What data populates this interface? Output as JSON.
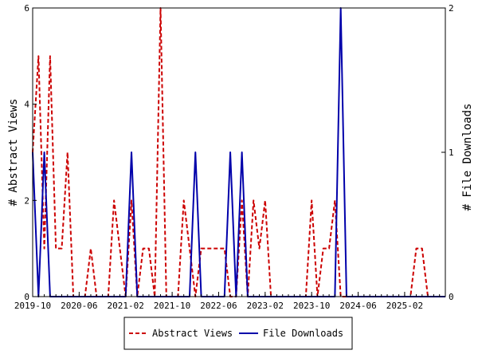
{
  "chart_data": {
    "type": "line",
    "title": "",
    "xlabel": "",
    "ylabel_left": "# Abstract Views",
    "ylabel_right": "# File Downloads",
    "ylim_left": [
      0,
      6
    ],
    "ylim_right": [
      0,
      2
    ],
    "yticks_left": [
      "0",
      "2",
      "4",
      "6"
    ],
    "yticks_right": [
      "0",
      "1",
      "2"
    ],
    "xlim": [
      "2019-10",
      "2025-09"
    ],
    "xticks": [
      "2019-10",
      "2020-06",
      "2021-02",
      "2021-10",
      "2022-06",
      "2023-02",
      "2023-10",
      "2024-06",
      "2025-02"
    ],
    "grid": false,
    "legend_position": "bottom",
    "x": [
      "2019-10",
      "2019-11",
      "2019-12",
      "2020-01",
      "2020-02",
      "2020-03",
      "2020-04",
      "2020-05",
      "2020-06",
      "2020-07",
      "2020-08",
      "2020-09",
      "2020-10",
      "2020-11",
      "2020-12",
      "2021-01",
      "2021-02",
      "2021-03",
      "2021-04",
      "2021-05",
      "2021-06",
      "2021-07",
      "2021-08",
      "2021-09",
      "2021-10",
      "2021-11",
      "2021-12",
      "2022-01",
      "2022-02",
      "2022-03",
      "2022-04",
      "2022-05",
      "2022-06",
      "2022-07",
      "2022-08",
      "2022-09",
      "2022-10",
      "2022-11",
      "2022-12",
      "2023-01",
      "2023-02",
      "2023-03",
      "2023-04",
      "2023-05",
      "2023-06",
      "2023-07",
      "2023-08",
      "2023-09",
      "2023-10",
      "2023-11",
      "2023-12",
      "2024-01",
      "2024-02",
      "2024-03",
      "2024-04",
      "2024-05",
      "2024-06",
      "2024-07",
      "2024-08",
      "2024-09",
      "2024-10",
      "2024-11",
      "2024-12",
      "2025-01",
      "2025-02",
      "2025-03",
      "2025-04",
      "2025-05",
      "2025-06",
      "2025-07",
      "2025-08",
      "2025-09"
    ],
    "series": [
      {
        "name": "Abstract Views",
        "axis": "left",
        "color": "#cc0000",
        "style": "dashed",
        "values": [
          3,
          5,
          1,
          5,
          1,
          1,
          3,
          0,
          0,
          0,
          1,
          0,
          0,
          0,
          2,
          1,
          0,
          2,
          0,
          1,
          1,
          0,
          6,
          0,
          0,
          0,
          2,
          1,
          0,
          1,
          1,
          1,
          1,
          1,
          0,
          0,
          2,
          0,
          2,
          1,
          2,
          0,
          0,
          0,
          0,
          0,
          0,
          0,
          2,
          0,
          1,
          1,
          2,
          0,
          0,
          0,
          0,
          0,
          0,
          0,
          0,
          0,
          0,
          0,
          0,
          0,
          1,
          1,
          0,
          0,
          0,
          0
        ]
      },
      {
        "name": "File Downloads",
        "axis": "right",
        "color": "#0000aa",
        "style": "solid",
        "values": [
          1,
          0,
          1,
          0,
          0,
          0,
          0,
          0,
          0,
          0,
          0,
          0,
          0,
          0,
          0,
          0,
          0,
          1,
          0,
          0,
          0,
          0,
          0,
          0,
          0,
          0,
          0,
          0,
          1,
          0,
          0,
          0,
          0,
          0,
          1,
          0,
          1,
          0,
          0,
          0,
          0,
          0,
          0,
          0,
          0,
          0,
          0,
          0,
          0,
          0,
          0,
          0,
          0,
          2,
          0,
          0,
          0,
          0,
          0,
          0,
          0,
          0,
          0,
          0,
          0,
          0,
          0,
          0,
          0,
          0,
          0,
          0
        ]
      }
    ]
  }
}
